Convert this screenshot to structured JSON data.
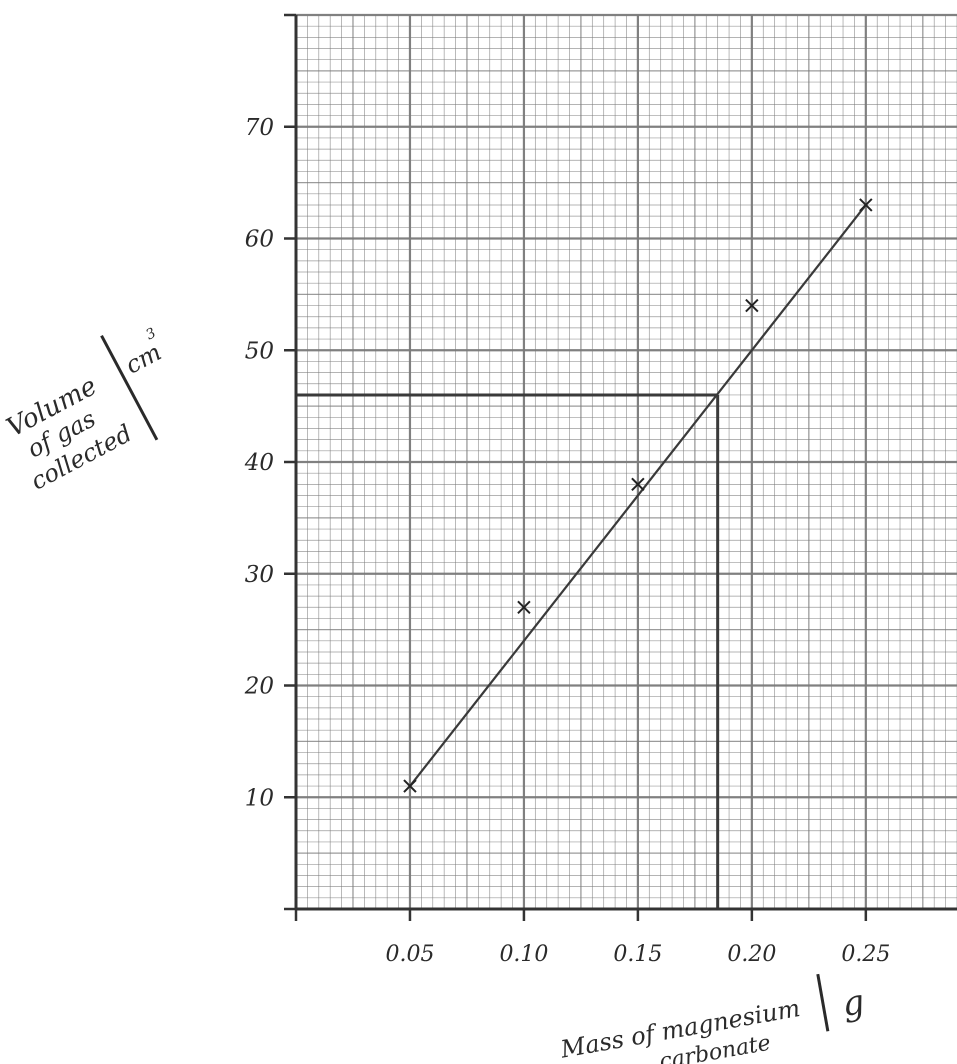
{
  "chart_data": {
    "type": "scatter",
    "title": "",
    "xlabel_line1": "Mass of magnesium",
    "xlabel_line2": "carbonate",
    "xlabel_unit": "g",
    "ylabel_line1": "Volume",
    "ylabel_line2": "of gas",
    "ylabel_line3": "collected",
    "ylabel_unit": "cm",
    "ylabel_unit_power": "3",
    "xlim": [
      0,
      0.29
    ],
    "ylim": [
      0,
      80
    ],
    "grid": true,
    "legend": "none",
    "x_ticks": [
      {
        "value": 0.05,
        "label": "0.05"
      },
      {
        "value": 0.1,
        "label": "0.10"
      },
      {
        "value": 0.15,
        "label": "0.15"
      },
      {
        "value": 0.2,
        "label": "0.20"
      },
      {
        "value": 0.25,
        "label": "0.25"
      }
    ],
    "y_ticks": [
      {
        "value": 10,
        "label": "10"
      },
      {
        "value": 20,
        "label": "20"
      },
      {
        "value": 30,
        "label": "30"
      },
      {
        "value": 40,
        "label": "40"
      },
      {
        "value": 50,
        "label": "50"
      },
      {
        "value": 60,
        "label": "60"
      },
      {
        "value": 70,
        "label": "70"
      }
    ],
    "points": [
      {
        "x": 0.05,
        "y": 11
      },
      {
        "x": 0.1,
        "y": 27
      },
      {
        "x": 0.15,
        "y": 38
      },
      {
        "x": 0.2,
        "y": 54
      },
      {
        "x": 0.25,
        "y": 63
      }
    ],
    "best_fit_line": {
      "x1": 0.05,
      "y1": 11,
      "x2": 0.25,
      "y2": 63
    },
    "reading_line": {
      "x": 0.185,
      "y": 46
    },
    "colors": {
      "grid": "#7a7a7a",
      "ink": "#3a3a3a",
      "paper": "#ffffff"
    }
  }
}
